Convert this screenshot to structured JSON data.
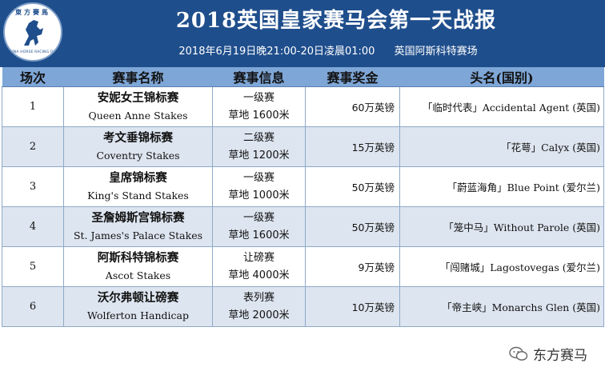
{
  "header": {
    "logo_top_text": "東方賽馬",
    "logo_bottom_text": "CHINA HORSE RACING.ORG",
    "title": "2018英国皇家赛马会第一天战报",
    "subtitle_time": "2018年6月19日晚21:00-20日凌晨01:00",
    "subtitle_venue": "英国阿斯科特赛场"
  },
  "table": {
    "headers": {
      "no": "场次",
      "race": "赛事名称",
      "info": "赛事信息",
      "prize": "赛事奖金",
      "winner": "头名(国别)"
    },
    "rows": [
      {
        "no": "1",
        "name_zh": "安妮女王锦标赛",
        "name_en": "Queen Anne Stakes",
        "grade": "一级赛",
        "track": "草地 1600米",
        "prize": "60万英镑",
        "winner": "「临时代表」Accidental Agent (英国)"
      },
      {
        "no": "2",
        "name_zh": "考文垂锦标赛",
        "name_en": "Coventry Stakes",
        "grade": "二级赛",
        "track": "草地 1200米",
        "prize": "15万英镑",
        "winner": "「花萼」Calyx (英国)"
      },
      {
        "no": "3",
        "name_zh": "皇席锦标赛",
        "name_en": "King's Stand Stakes",
        "grade": "一级赛",
        "track": "草地 1000米",
        "prize": "50万英镑",
        "winner": "「蔚蓝海角」Blue Point (爱尔兰)"
      },
      {
        "no": "4",
        "name_zh": "圣詹姆斯宫锦标赛",
        "name_en": "St. James's Palace Stakes",
        "grade": "一级赛",
        "track": "草地 1600米",
        "prize": "50万英镑",
        "winner": "「笼中马」Without Parole (英国)"
      },
      {
        "no": "5",
        "name_zh": "阿斯科特锦标赛",
        "name_en": "Ascot Stakes",
        "grade": "让磅赛",
        "track": "草地 4000米",
        "prize": "9万英镑",
        "winner": "「闯赌城」Lagostovegas (爱尔兰)"
      },
      {
        "no": "6",
        "name_zh": "沃尔弗顿让磅赛",
        "name_en": "Wolferton Handicap",
        "grade": "表列赛",
        "track": "草地 2000米",
        "prize": "10万英镑",
        "winner": "「帝主峡」Monarchs Glen (英国)"
      }
    ]
  },
  "watermark": {
    "icon": "wechat-icon",
    "text": "东方赛马"
  },
  "colors": {
    "banner": "#1f4e8c",
    "header_row": "#7ea6d6",
    "alt_row": "#dde5f0"
  }
}
